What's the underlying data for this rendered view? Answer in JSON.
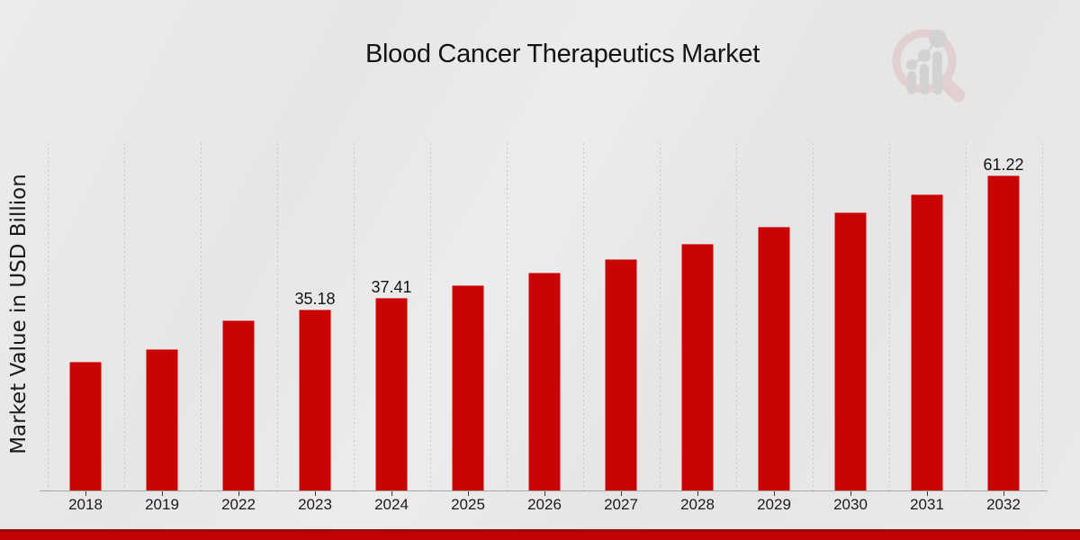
{
  "page": {
    "background": "#e9e8e8",
    "footer_bar_color": "#c20404",
    "footer_bar_edge_color": "#8e0b0b"
  },
  "chart_data": {
    "type": "bar",
    "title": "Blood Cancer Therapeutics Market",
    "ylabel": "Market Value in USD Billion",
    "xlabel": "",
    "categories": [
      "2018",
      "2019",
      "2022",
      "2023",
      "2024",
      "2025",
      "2026",
      "2027",
      "2028",
      "2029",
      "2030",
      "2031",
      "2032"
    ],
    "values": [
      25.0,
      27.5,
      33.1,
      35.18,
      37.41,
      39.8,
      42.4,
      45.0,
      48.0,
      51.2,
      54.1,
      57.6,
      61.22
    ],
    "data_labels": [
      "",
      "",
      "",
      "35.18",
      "37.41",
      "",
      "",
      "",
      "",
      "",
      "",
      "",
      "61.22"
    ],
    "bar_color": "#c80404",
    "ylim": [
      0,
      67.5
    ],
    "grid": "vertical-dashed",
    "gridline_color": "#c7c7c7",
    "axis_line_color": "#a8a8a8",
    "legend": "none"
  },
  "logo": {
    "name": "market-research-future-watermark",
    "ring_color": "#dfbfbf",
    "bars_color": "#c3c3c5"
  }
}
